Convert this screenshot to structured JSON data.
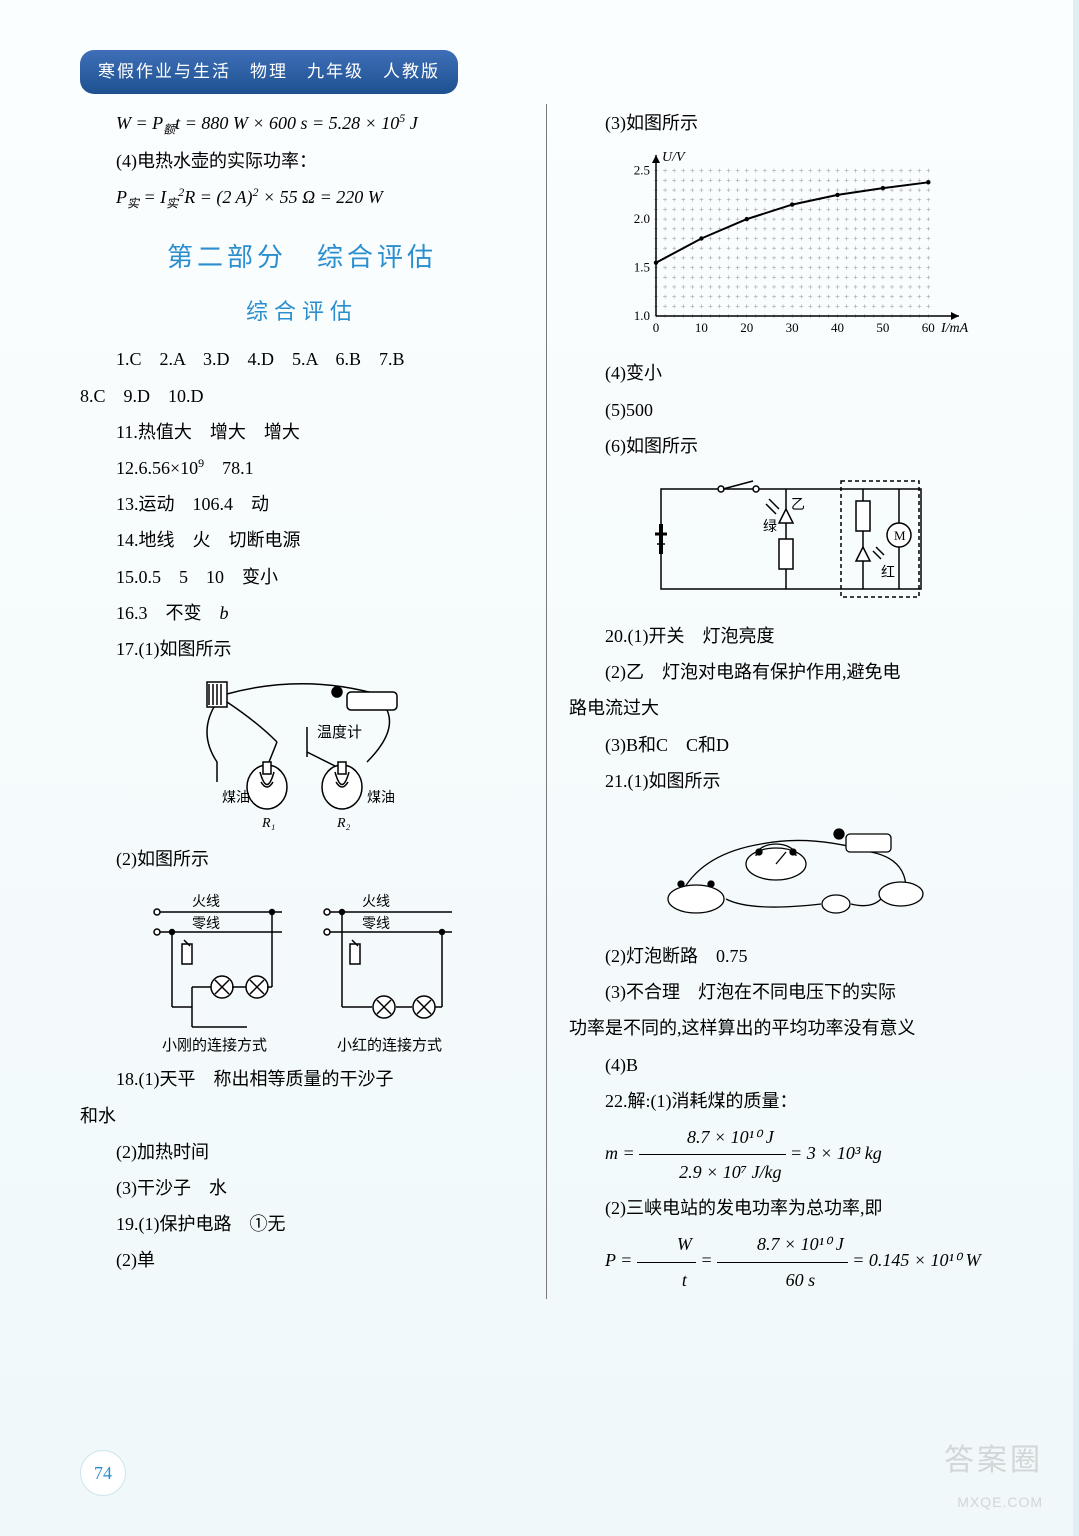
{
  "header": "寒假作业与生活　物理　九年级　人教版",
  "page_number": "74",
  "watermark": {
    "main": "答案圈",
    "url": "MXQE.COM"
  },
  "part_title": "第二部分　综合评估",
  "sub_title": "综合评估",
  "left": {
    "eqA": "W = P t = 880 W × 600 s = 5.28 × 10⁵ J",
    "line4": "(4)电热水壶的实际功率：",
    "eqB": "P实 = I实² R = (2 A)² × 55 Ω = 220 W",
    "mc": "1.C　2.A　3.D　4.D　5.A　6.B　7.B",
    "mc2": "8.C　9.D　10.D",
    "q11": "11.热值大　增大　增大",
    "q12": "12.6.56×10⁹　78.1",
    "q13": "13.运动　106.4　动",
    "q14": "14.地线　火　切断电源",
    "q15": "15.0.5　5　10　变小",
    "q16": "16.3　不变　b",
    "q17_1": "17.(1)如图所示",
    "fig17": {
      "labels": [
        "温度计",
        "煤油",
        "煤油",
        "R₁",
        "R₂"
      ]
    },
    "q17_2": "(2)如图所示",
    "fig17b": {
      "lines": [
        "火线",
        "零线"
      ],
      "caps": [
        "小刚的连接方式",
        "小红的连接方式"
      ]
    },
    "q18_1": "18.(1)天平　称出相等质量的干沙子",
    "q18_1b": "和水",
    "q18_2": "(2)加热时间",
    "q18_3": "(3)干沙子　水",
    "q19_1": "19.(1)保护电路　①无",
    "q19_2": "(2)单"
  },
  "right": {
    "q19_3": "(3)如图所示",
    "chart": {
      "y_label": "U/V",
      "x_label": "I/mA",
      "x_ticks": [
        "0",
        "10",
        "20",
        "30",
        "40",
        "50",
        "60"
      ],
      "y_ticks": [
        "1.0",
        "1.5",
        "2.0",
        "2.5"
      ],
      "xlim": [
        0,
        65
      ],
      "ylim": [
        1.0,
        2.6
      ],
      "points": [
        [
          0,
          1.55
        ],
        [
          10,
          1.8
        ],
        [
          20,
          2.0
        ],
        [
          30,
          2.15
        ],
        [
          40,
          2.25
        ],
        [
          50,
          2.32
        ],
        [
          60,
          2.38
        ]
      ],
      "bg": "#ffffff",
      "grid": "#999",
      "line": "#000"
    },
    "q19_4": "(4)变小",
    "q19_5": "(5)500",
    "q19_6": "(6)如图所示",
    "fig19_6": {
      "labels": [
        "乙",
        "绿",
        "红",
        "M"
      ]
    },
    "q20_1": "20.(1)开关　灯泡亮度",
    "q20_2": "(2)乙　灯泡对电路有保护作用,避免电",
    "q20_2b": "路电流过大",
    "q20_3": "(3)B和C　C和D",
    "q21_1": "21.(1)如图所示",
    "q21_2": "(2)灯泡断路　0.75",
    "q21_3a": "(3)不合理　灯泡在不同电压下的实际",
    "q21_3b": "功率是不同的,这样算出的平均功率没有意义",
    "q21_4": "(4)B",
    "q22h": "22.解:(1)消耗煤的质量：",
    "q22eq1": {
      "num": "8.7 × 10¹⁰ J",
      "den": "2.9 × 10⁷ J/kg",
      "rhs": "= 3 × 10³ kg"
    },
    "q22_2": "(2)三峡电站的发电功率为总功率,即",
    "q22eq2": {
      "sym": "P =",
      "mid": "W",
      "midb": "t",
      "num": "8.7 × 10¹⁰ J",
      "den": "60 s",
      "rhs": "= 0.145 × 10¹⁰ W"
    }
  }
}
